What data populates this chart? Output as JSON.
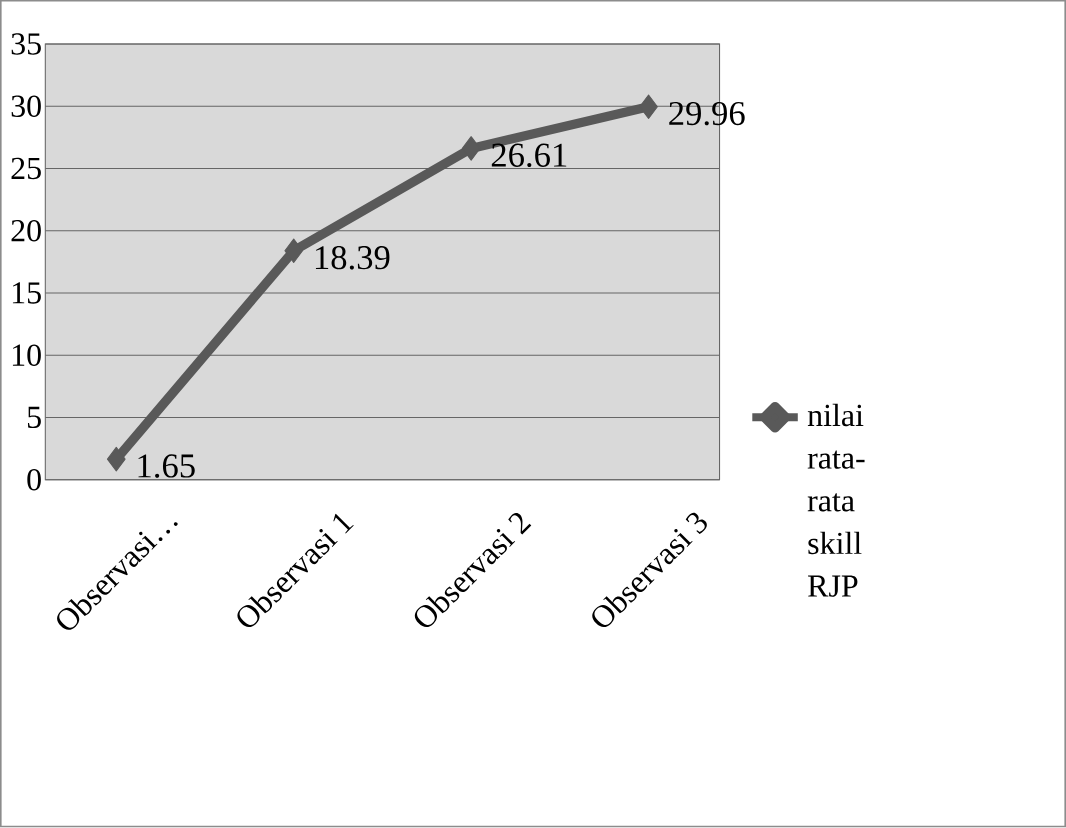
{
  "chart_data": {
    "type": "line",
    "categories": [
      "Observasi…",
      "Observasi 1",
      "Observasi 2",
      "Observasi 3"
    ],
    "series": [
      {
        "name": "nilai rata-rata skill RJP",
        "color": "#595959",
        "values": [
          1.65,
          18.39,
          26.61,
          29.96
        ]
      }
    ],
    "ylim": [
      0,
      35
    ],
    "yticks": [
      0,
      5,
      10,
      15,
      20,
      25,
      30,
      35
    ],
    "grid": "y",
    "legend": "right",
    "marker": "diamond",
    "line_style": "solid",
    "data_labels": true
  }
}
